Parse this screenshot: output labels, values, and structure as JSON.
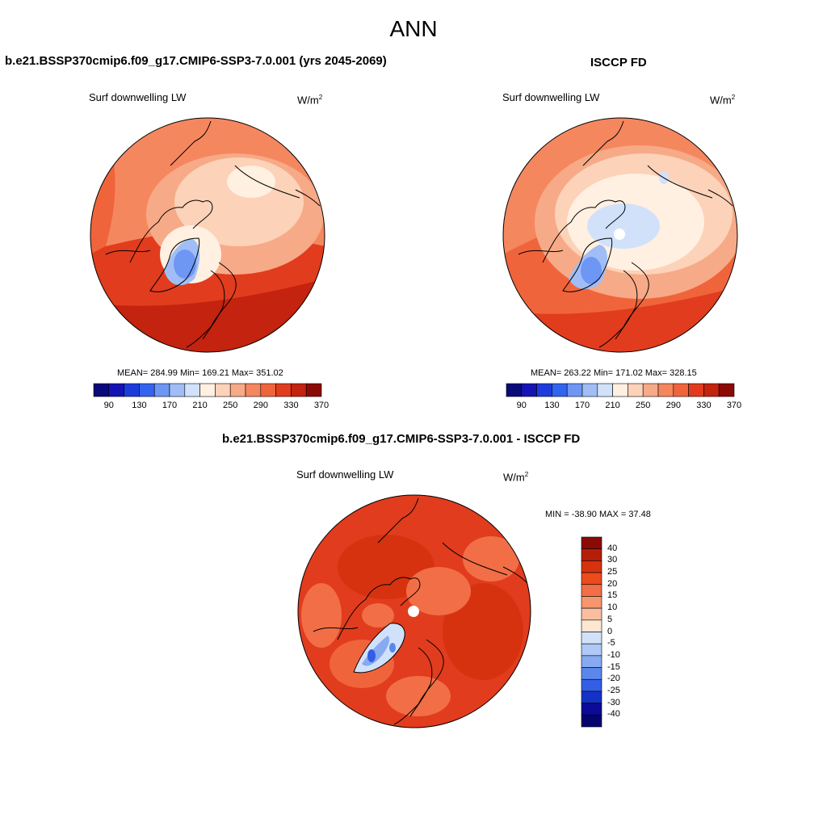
{
  "title": "ANN",
  "units_base": "W/m",
  "units_exp": "2",
  "panels": [
    {
      "id": "model",
      "title": "b.e21.BSSP370cmip6.f09_g17.CMIP6-SSP3-7.0.001 (yrs 2045-2069)",
      "variable": "Surf downwelling LW",
      "stats": "MEAN= 284.99  Min= 169.21  Max= 351.02"
    },
    {
      "id": "obs",
      "title": "ISCCP FD",
      "variable": "Surf downwelling LW",
      "stats": "MEAN= 263.22  Min= 171.02  Max= 328.15"
    },
    {
      "id": "diff",
      "title": "b.e21.BSSP370cmip6.f09_g17.CMIP6-SSP3-7.0.001 - ISCCP FD",
      "variable": "Surf downwelling LW",
      "stats": "MIN = -38.90 MAX =  37.48"
    }
  ],
  "colorbar_abs": {
    "ticks": [
      "90",
      "130",
      "170",
      "210",
      "250",
      "290",
      "330",
      "370"
    ],
    "colors": [
      "#0a0a7a",
      "#1414b4",
      "#1e3cdc",
      "#3264f0",
      "#6e96f5",
      "#a0bef5",
      "#d2e1fa",
      "#fff0e1",
      "#fcd2b9",
      "#f7aa87",
      "#f5875f",
      "#f0643c",
      "#e13c1e",
      "#c3230f",
      "#8c0a05"
    ]
  },
  "colorbar_diff": {
    "labels": [
      "40",
      "30",
      "25",
      "20",
      "15",
      "10",
      "5",
      "0",
      "-5",
      "-10",
      "-15",
      "-20",
      "-25",
      "-30",
      "-40"
    ],
    "colors": [
      "#8c0a05",
      "#b41e0a",
      "#d7320f",
      "#ec4b1e",
      "#f26e46",
      "#f5966e",
      "#f9be9f",
      "#fde6d2",
      "#d2e1fa",
      "#afc8f5",
      "#87aaf0",
      "#5a87eb",
      "#325fe6",
      "#1432c8",
      "#0a0a96",
      "#05056e"
    ]
  }
}
